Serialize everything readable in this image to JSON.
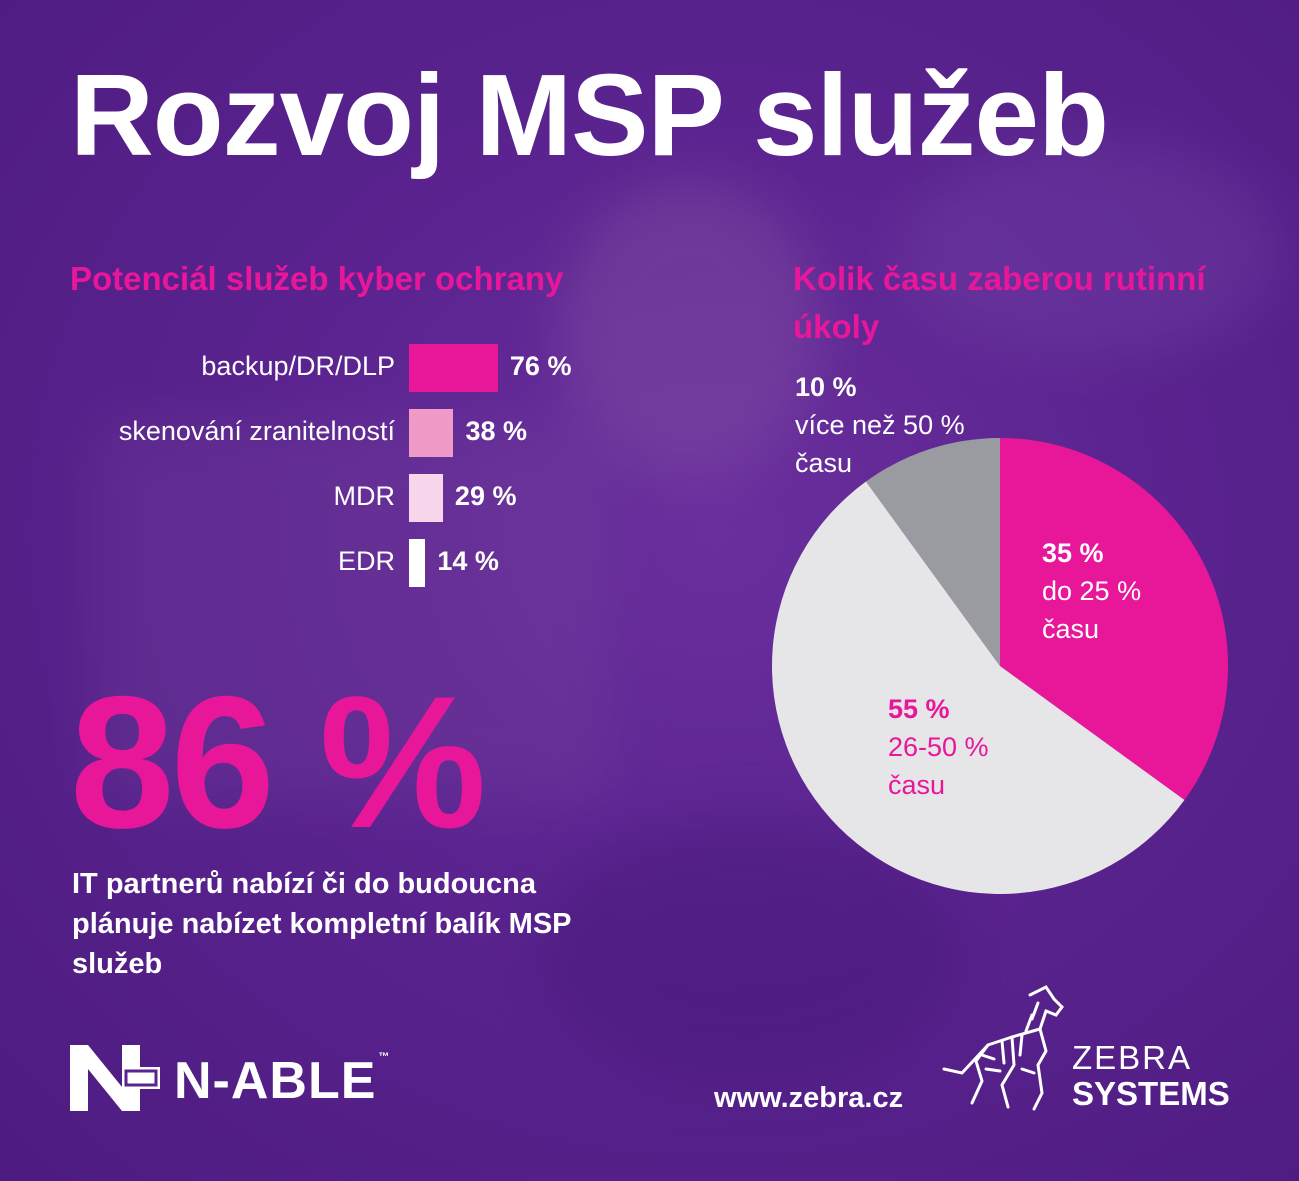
{
  "title": "Rozvoj MSP služeb",
  "colors": {
    "accent": "#e8179a",
    "background": "#5a238f",
    "pie_light": "#e6e6e8",
    "pie_grey": "#9a9ba0"
  },
  "chart_data": [
    {
      "type": "bar",
      "title": "Potenciál služeb kyber ochrany",
      "categories": [
        "backup/DR/DLP",
        "skenování zranitelností",
        "MDR",
        "EDR"
      ],
      "values": [
        76,
        38,
        29,
        14
      ],
      "value_labels": [
        "76 %",
        "38 %",
        "29 %",
        "14 %"
      ],
      "bar_colors": [
        "#e8179a",
        "#f09ac8",
        "#f7d5ea",
        "#ffffff"
      ],
      "orientation": "horizontal",
      "grid": false
    },
    {
      "type": "pie",
      "title": "Kolik času zaberou rutinní úkoly",
      "slices": [
        {
          "value": 35,
          "pct": "35 %",
          "label": "do 25 %",
          "label2": "času",
          "color": "#e8179a"
        },
        {
          "value": 55,
          "pct": "55 %",
          "label": "26-50 %",
          "label2": "času",
          "color": "#e6e6e8"
        },
        {
          "value": 10,
          "pct": "10 %",
          "label": "více než 50 %",
          "label2": "času",
          "color": "#9a9ba0"
        }
      ]
    }
  ],
  "stat": {
    "value": "86 %",
    "description": "IT partnerů nabízí či do budoucna plánuje nabízet kompletní balík MSP služeb"
  },
  "footer": {
    "nable_logo": "N-ABLE",
    "nable_tm": "™",
    "website": "www.zebra.cz",
    "zebra_line1": "ZEBRA",
    "zebra_line2": "SYSTEMS"
  },
  "icons": [
    "n-able-logo-icon",
    "zebra-logo-icon"
  ]
}
